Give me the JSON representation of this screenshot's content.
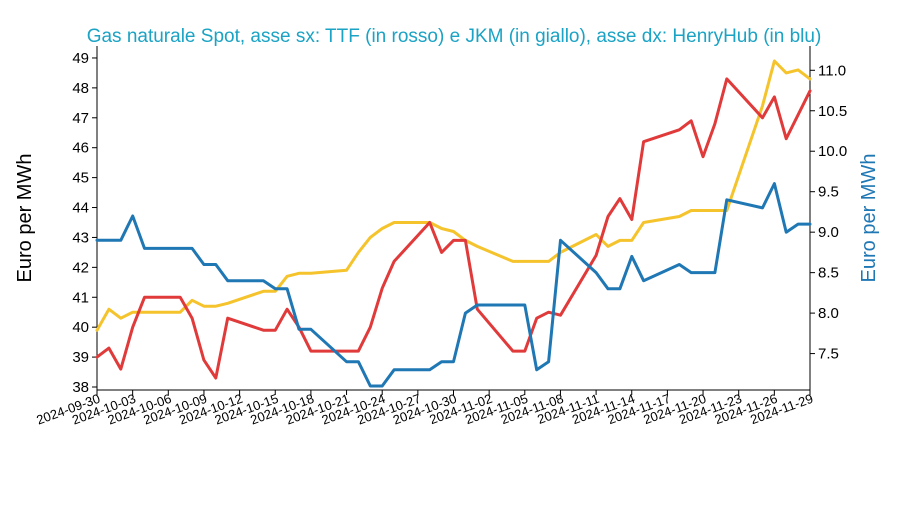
{
  "chart_data": {
    "type": "line",
    "title": "Gas naturale Spot, asse sx: TTF (in rosso) e JKM (in giallo), asse dx: HenryHub (in blu)",
    "ylabel_left": "Euro per MWh",
    "ylabel_right": "Euro per MWh",
    "ylabel_left_color": "#000000",
    "ylabel_right_color": "#1f77b4",
    "ylim_left": [
      37.9,
      49.4
    ],
    "ylim_right": [
      7.05,
      11.3
    ],
    "yticks_left": [
      38,
      39,
      40,
      41,
      42,
      43,
      44,
      45,
      46,
      47,
      48,
      49
    ],
    "yticks_right": [
      7.5,
      8.0,
      8.5,
      9.0,
      9.5,
      10.0,
      10.5,
      11.0
    ],
    "xticks": [
      "2024-09-30",
      "2024-10-03",
      "2024-10-06",
      "2024-10-09",
      "2024-10-12",
      "2024-10-15",
      "2024-10-18",
      "2024-10-21",
      "2024-10-24",
      "2024-10-27",
      "2024-10-30",
      "2024-11-02",
      "2024-11-05",
      "2024-11-08",
      "2024-11-11",
      "2024-11-14",
      "2024-11-17",
      "2024-11-20",
      "2024-11-23",
      "2024-11-26",
      "2024-11-29"
    ],
    "grid": false,
    "x": [
      "2024-09-30",
      "2024-10-01",
      "2024-10-02",
      "2024-10-03",
      "2024-10-04",
      "2024-10-07",
      "2024-10-08",
      "2024-10-09",
      "2024-10-10",
      "2024-10-11",
      "2024-10-14",
      "2024-10-15",
      "2024-10-16",
      "2024-10-17",
      "2024-10-18",
      "2024-10-21",
      "2024-10-22",
      "2024-10-23",
      "2024-10-24",
      "2024-10-25",
      "2024-10-28",
      "2024-10-29",
      "2024-10-30",
      "2024-10-31",
      "2024-11-01",
      "2024-11-04",
      "2024-11-05",
      "2024-11-06",
      "2024-11-07",
      "2024-11-08",
      "2024-11-11",
      "2024-11-12",
      "2024-11-13",
      "2024-11-14",
      "2024-11-15",
      "2024-11-18",
      "2024-11-19",
      "2024-11-20",
      "2024-11-21",
      "2024-11-22",
      "2024-11-25",
      "2024-11-26",
      "2024-11-27",
      "2024-11-28",
      "2024-11-29"
    ],
    "series": [
      {
        "name": "TTF",
        "axis": "left",
        "color": "#e03a3a",
        "values": [
          39.0,
          39.3,
          38.6,
          40.0,
          41.0,
          41.0,
          40.3,
          38.9,
          38.3,
          40.3,
          39.9,
          39.9,
          40.6,
          40.0,
          39.2,
          39.2,
          39.2,
          40.0,
          41.3,
          42.2,
          43.5,
          42.5,
          42.9,
          42.9,
          40.6,
          39.2,
          39.2,
          40.3,
          40.5,
          40.4,
          42.4,
          43.7,
          44.3,
          43.6,
          46.2,
          46.6,
          46.9,
          45.7,
          46.8,
          48.3,
          47.0,
          47.7,
          46.3,
          47.1,
          47.9
        ]
      },
      {
        "name": "JKM",
        "axis": "left",
        "color": "#f5c32c",
        "values": [
          39.9,
          40.6,
          40.3,
          40.5,
          40.5,
          40.5,
          40.9,
          40.7,
          40.7,
          40.8,
          41.2,
          41.2,
          41.7,
          41.8,
          41.8,
          41.9,
          42.5,
          43.0,
          43.3,
          43.5,
          43.5,
          43.3,
          43.2,
          42.9,
          42.7,
          42.2,
          42.2,
          42.2,
          42.2,
          42.5,
          43.1,
          42.7,
          42.9,
          42.9,
          43.5,
          43.7,
          43.9,
          43.9,
          43.9,
          43.9,
          47.4,
          48.9,
          48.5,
          48.6,
          48.3
        ]
      },
      {
        "name": "HenryHub",
        "axis": "right",
        "color": "#1f77b4",
        "values": [
          8.9,
          8.9,
          8.9,
          9.2,
          8.8,
          8.8,
          8.8,
          8.6,
          8.6,
          8.4,
          8.4,
          8.3,
          8.3,
          7.8,
          7.8,
          7.4,
          7.4,
          7.1,
          7.1,
          7.3,
          7.3,
          7.4,
          7.4,
          8.0,
          8.1,
          8.1,
          8.1,
          7.3,
          7.4,
          8.9,
          8.5,
          8.3,
          8.3,
          8.7,
          8.4,
          8.6,
          8.5,
          8.5,
          8.5,
          9.4,
          9.3,
          9.6,
          9.0,
          9.1,
          9.1
        ]
      }
    ]
  }
}
